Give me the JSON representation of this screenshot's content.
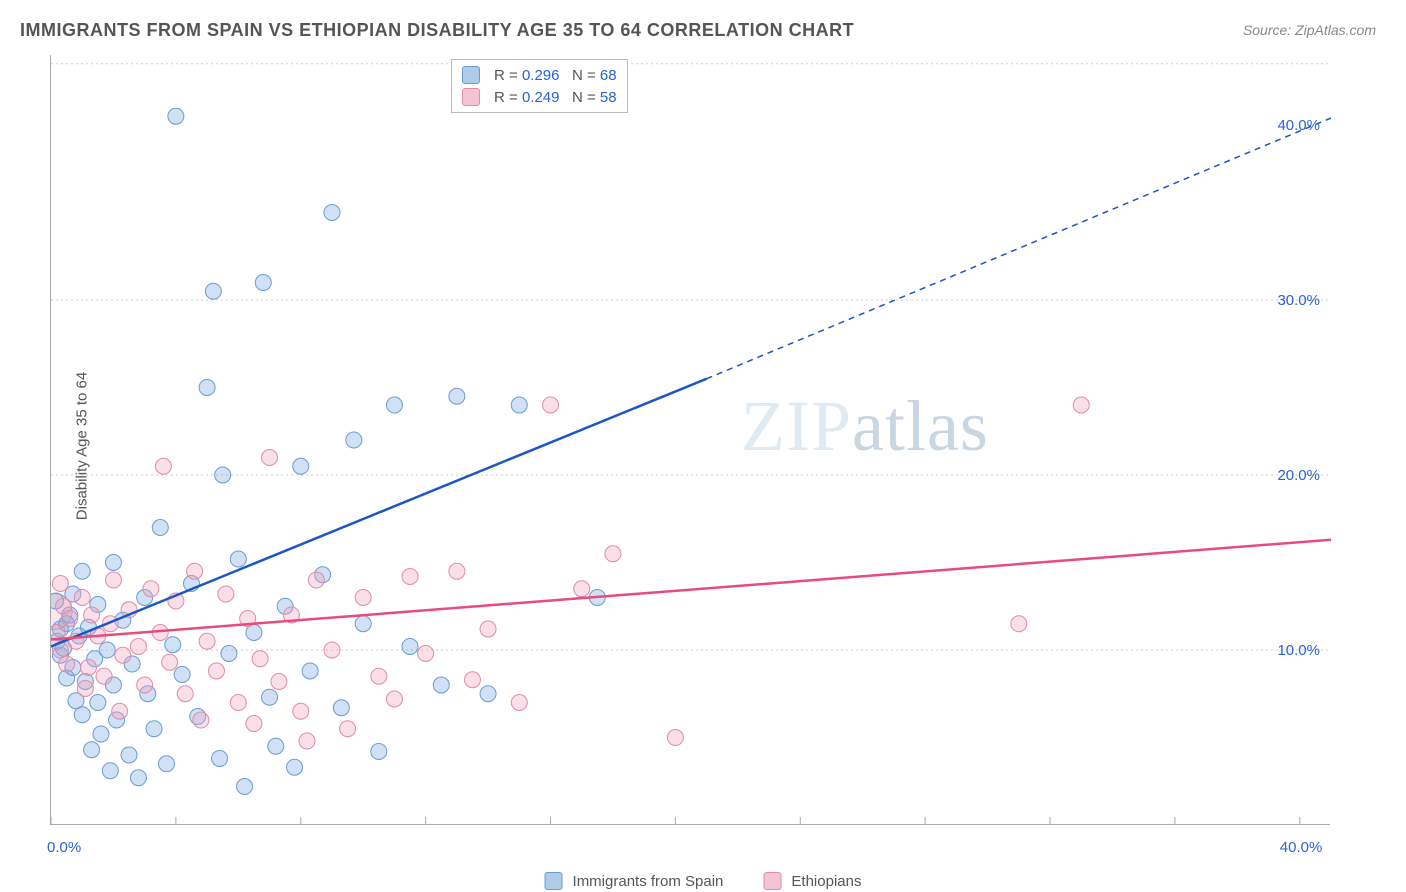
{
  "title": "IMMIGRANTS FROM SPAIN VS ETHIOPIAN DISABILITY AGE 35 TO 64 CORRELATION CHART",
  "source": "Source: ZipAtlas.com",
  "watermark": "ZIPatlas",
  "ylabel": "Disability Age 35 to 64",
  "chart": {
    "type": "scatter",
    "xlim": [
      0,
      41
    ],
    "ylim": [
      0,
      44
    ],
    "x_plot_labels": [
      {
        "v": 0,
        "t": "0.0%"
      },
      {
        "v": 40,
        "t": "40.0%"
      }
    ],
    "y_plot_labels": [
      {
        "v": 10,
        "t": "10.0%"
      },
      {
        "v": 20,
        "t": "20.0%"
      },
      {
        "v": 30,
        "t": "30.0%"
      },
      {
        "v": 40,
        "t": "40.0%"
      }
    ],
    "y_grid": [
      10,
      20,
      30,
      43.5
    ],
    "x_ticks": [
      0,
      4,
      8,
      12,
      16,
      20,
      24,
      28,
      32,
      36,
      40
    ],
    "background_color": "#ffffff",
    "grid_color": "#cccccc",
    "marker_radius": 8,
    "stroke_width_trend": 2.5,
    "series": [
      {
        "name": "Immigrants from Spain",
        "fill": "rgba(120,170,225,0.35)",
        "stroke": "#6a9cd4",
        "swatch_fill": "#aecbea",
        "swatch_stroke": "#6a9cd4",
        "R": "0.296",
        "N": "68",
        "trend": {
          "color": "#1a56c4",
          "x1": 0,
          "y1": 10.2,
          "x2": 21,
          "y2": 25.5,
          "dash_to_x": 41,
          "dash_to_y": 40.4
        },
        "points": [
          [
            0.2,
            10.5
          ],
          [
            0.3,
            11.2
          ],
          [
            0.3,
            9.7
          ],
          [
            0.4,
            10.1
          ],
          [
            0.5,
            11.5
          ],
          [
            0.5,
            8.4
          ],
          [
            0.6,
            12.0
          ],
          [
            0.7,
            9.0
          ],
          [
            0.7,
            13.2
          ],
          [
            0.8,
            7.1
          ],
          [
            0.9,
            10.8
          ],
          [
            1.0,
            6.3
          ],
          [
            1.0,
            14.5
          ],
          [
            1.1,
            8.2
          ],
          [
            1.2,
            11.3
          ],
          [
            1.3,
            4.3
          ],
          [
            1.4,
            9.5
          ],
          [
            1.5,
            7.0
          ],
          [
            1.5,
            12.6
          ],
          [
            1.6,
            5.2
          ],
          [
            1.8,
            10.0
          ],
          [
            1.9,
            3.1
          ],
          [
            2.0,
            8.0
          ],
          [
            2.0,
            15.0
          ],
          [
            2.1,
            6.0
          ],
          [
            2.3,
            11.7
          ],
          [
            2.5,
            4.0
          ],
          [
            2.6,
            9.2
          ],
          [
            2.8,
            2.7
          ],
          [
            3.0,
            13.0
          ],
          [
            3.1,
            7.5
          ],
          [
            3.3,
            5.5
          ],
          [
            3.5,
            17.0
          ],
          [
            3.7,
            3.5
          ],
          [
            3.9,
            10.3
          ],
          [
            4.0,
            40.5
          ],
          [
            4.2,
            8.6
          ],
          [
            4.5,
            13.8
          ],
          [
            4.7,
            6.2
          ],
          [
            5.0,
            25.0
          ],
          [
            5.2,
            30.5
          ],
          [
            5.4,
            3.8
          ],
          [
            5.5,
            20.0
          ],
          [
            5.7,
            9.8
          ],
          [
            6.0,
            15.2
          ],
          [
            6.2,
            2.2
          ],
          [
            6.5,
            11.0
          ],
          [
            6.8,
            31.0
          ],
          [
            7.0,
            7.3
          ],
          [
            7.2,
            4.5
          ],
          [
            7.5,
            12.5
          ],
          [
            7.8,
            3.3
          ],
          [
            8.0,
            20.5
          ],
          [
            8.3,
            8.8
          ],
          [
            8.7,
            14.3
          ],
          [
            9.0,
            35.0
          ],
          [
            9.3,
            6.7
          ],
          [
            9.7,
            22.0
          ],
          [
            10.0,
            11.5
          ],
          [
            10.5,
            4.2
          ],
          [
            11.0,
            24.0
          ],
          [
            11.5,
            10.2
          ],
          [
            12.5,
            8.0
          ],
          [
            13.0,
            24.5
          ],
          [
            14.0,
            7.5
          ],
          [
            15.0,
            24.0
          ],
          [
            17.5,
            13.0
          ],
          [
            0.15,
            12.8
          ]
        ]
      },
      {
        "name": "Ethiopians",
        "fill": "rgba(240,160,190,0.35)",
        "stroke": "#e28ca8",
        "swatch_fill": "#f5c4d4",
        "swatch_stroke": "#e28ca8",
        "R": "0.249",
        "N": "58",
        "trend": {
          "color": "#e94b7a",
          "x1": 0,
          "y1": 10.6,
          "x2": 41,
          "y2": 16.3
        },
        "points": [
          [
            0.2,
            11.0
          ],
          [
            0.3,
            10.0
          ],
          [
            0.4,
            12.5
          ],
          [
            0.5,
            9.2
          ],
          [
            0.6,
            11.8
          ],
          [
            0.8,
            10.5
          ],
          [
            1.0,
            13.0
          ],
          [
            1.2,
            9.0
          ],
          [
            1.3,
            12.0
          ],
          [
            1.5,
            10.8
          ],
          [
            1.7,
            8.5
          ],
          [
            1.9,
            11.5
          ],
          [
            2.0,
            14.0
          ],
          [
            2.3,
            9.7
          ],
          [
            2.5,
            12.3
          ],
          [
            2.8,
            10.2
          ],
          [
            3.0,
            8.0
          ],
          [
            3.2,
            13.5
          ],
          [
            3.5,
            11.0
          ],
          [
            3.8,
            9.3
          ],
          [
            4.0,
            12.8
          ],
          [
            4.3,
            7.5
          ],
          [
            4.6,
            14.5
          ],
          [
            5.0,
            10.5
          ],
          [
            5.3,
            8.8
          ],
          [
            5.6,
            13.2
          ],
          [
            6.0,
            7.0
          ],
          [
            6.3,
            11.8
          ],
          [
            6.7,
            9.5
          ],
          [
            7.0,
            21.0
          ],
          [
            7.3,
            8.2
          ],
          [
            7.7,
            12.0
          ],
          [
            8.0,
            6.5
          ],
          [
            8.5,
            14.0
          ],
          [
            9.0,
            10.0
          ],
          [
            9.5,
            5.5
          ],
          [
            10.0,
            13.0
          ],
          [
            10.5,
            8.5
          ],
          [
            11.0,
            7.2
          ],
          [
            11.5,
            14.2
          ],
          [
            12.0,
            9.8
          ],
          [
            13.0,
            14.5
          ],
          [
            13.5,
            8.3
          ],
          [
            14.0,
            11.2
          ],
          [
            15.0,
            7.0
          ],
          [
            16.0,
            24.0
          ],
          [
            17.0,
            13.5
          ],
          [
            18.0,
            15.5
          ],
          [
            20.0,
            5.0
          ],
          [
            31.0,
            11.5
          ],
          [
            33.0,
            24.0
          ],
          [
            0.3,
            13.8
          ],
          [
            1.1,
            7.8
          ],
          [
            2.2,
            6.5
          ],
          [
            4.8,
            6.0
          ],
          [
            6.5,
            5.8
          ],
          [
            8.2,
            4.8
          ],
          [
            3.6,
            20.5
          ]
        ]
      }
    ]
  },
  "big_markers": [
    {
      "x": 0.1,
      "y": 12.2,
      "r": 18,
      "fill": "rgba(240,160,190,0.25)",
      "stroke": "#e28ca8"
    }
  ],
  "legend_bottom": [
    {
      "label": "Immigrants from Spain",
      "swatch_fill": "#aecbea",
      "swatch_stroke": "#6a9cd4"
    },
    {
      "label": "Ethiopians",
      "swatch_fill": "#f5c4d4",
      "swatch_stroke": "#e28ca8"
    }
  ]
}
